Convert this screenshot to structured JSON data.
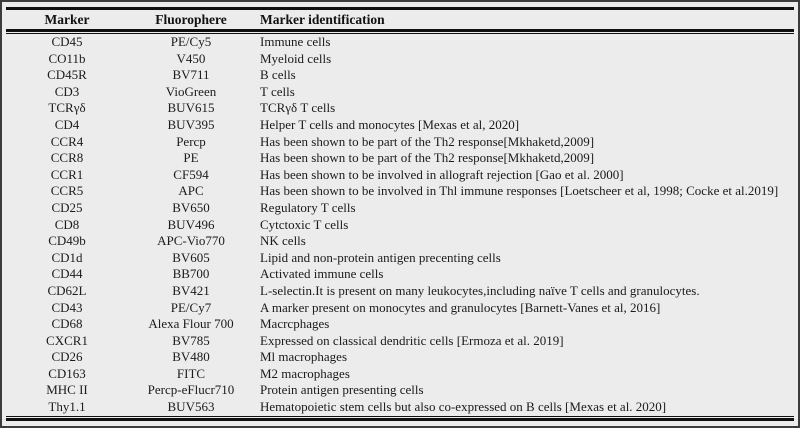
{
  "table": {
    "columns": [
      "Marker",
      "Fluorophere",
      "Marker identification"
    ],
    "rows": [
      {
        "marker": "CD45",
        "fluorophore": "PE/Cy5",
        "identification": "Immune cells"
      },
      {
        "marker": "CO11b",
        "fluorophore": "V450",
        "identification": "Myeloid cells"
      },
      {
        "marker": "CD45R",
        "fluorophore": "BV711",
        "identification": "B cells"
      },
      {
        "marker": "CD3",
        "fluorophore": "VioGreen",
        "identification": "T cells"
      },
      {
        "marker": "TCRγδ",
        "fluorophore": "BUV615",
        "identification": "TCRγδ T cells"
      },
      {
        "marker": "CD4",
        "fluorophore": "BUV395",
        "identification": "Helper T cells and monocytes [Mexas et al, 2020]"
      },
      {
        "marker": "CCR4",
        "fluorophore": "Percp",
        "identification": "Has been shown to be part of the Th2 response[Mkhaketd,2009]"
      },
      {
        "marker": "CCR8",
        "fluorophore": "PE",
        "identification": "Has been shown to be part of the Th2 response[Mkhaketd,2009]"
      },
      {
        "marker": "CCR1",
        "fluorophore": "CF594",
        "identification": "Has been shown to be involved in allograft rejection [Gao et al. 2000]"
      },
      {
        "marker": "CCR5",
        "fluorophore": "APC",
        "identification": "Has been shown to be involved in Thl immune responses [Loetscheer et al, 1998; Cocke et al.2019]"
      },
      {
        "marker": "CD25",
        "fluorophore": "BV650",
        "identification": "Regulatory T cells"
      },
      {
        "marker": "CD8",
        "fluorophore": "BUV496",
        "identification": "Cytctoxic T cells"
      },
      {
        "marker": "CD49b",
        "fluorophore": "APC-Vio770",
        "identification": "NK cells"
      },
      {
        "marker": "CD1d",
        "fluorophore": "BV605",
        "identification": "Lipid and non-protein antigen precenting cells"
      },
      {
        "marker": "CD44",
        "fluorophore": "BB700",
        "identification": "Activated immune cells"
      },
      {
        "marker": "CD62L",
        "fluorophore": "BV421",
        "identification": "L-selectin.It is present on many leukocytes,including naïve T cells and granulocytes."
      },
      {
        "marker": "CD43",
        "fluorophore": "PE/Cy7",
        "identification": "A marker present on monocytes and granulocytes [Barnett-Vanes et al, 2016]"
      },
      {
        "marker": "CD68",
        "fluorophore": "Alexa Flour 700",
        "identification": "Macrcphages"
      },
      {
        "marker": "CXCR1",
        "fluorophore": "BV785",
        "identification": "Expressed on classical dendritic cells [Ermoza et al. 2019]"
      },
      {
        "marker": "CD26",
        "fluorophore": "BV480",
        "identification": "Ml macrophages"
      },
      {
        "marker": "CD163",
        "fluorophore": "FITC",
        "identification": "M2 macrophages"
      },
      {
        "marker": "MHC II",
        "fluorophore": "Percp-eFlucr710",
        "identification": "Protein antigen presenting cells"
      },
      {
        "marker": "Thy1.1",
        "fluorophore": "BUV563",
        "identification": "Hematopoietic stem cells but also co-expressed on B cells [Mexas et al. 2020]"
      }
    ]
  },
  "colors": {
    "page_background": "#ececec",
    "rule_color": "#101010",
    "text_color": "#1b1b1b"
  }
}
